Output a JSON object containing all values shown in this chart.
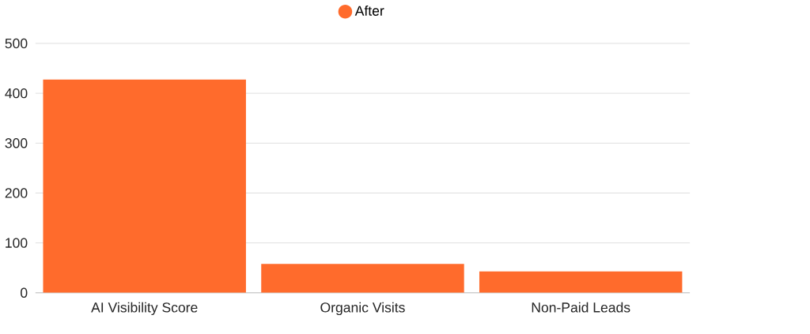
{
  "chart_data": {
    "type": "bar",
    "categories": [
      "AI Visibility Score",
      "Organic Visits",
      "Non-Paid Leads"
    ],
    "series": [
      {
        "name": "After",
        "color": "#ff6b2c",
        "values": [
          428,
          58,
          43
        ]
      }
    ],
    "ylim": [
      0,
      500
    ],
    "yticks": [
      0,
      100,
      200,
      300,
      400,
      500
    ],
    "grid": "y",
    "legend": "top"
  }
}
